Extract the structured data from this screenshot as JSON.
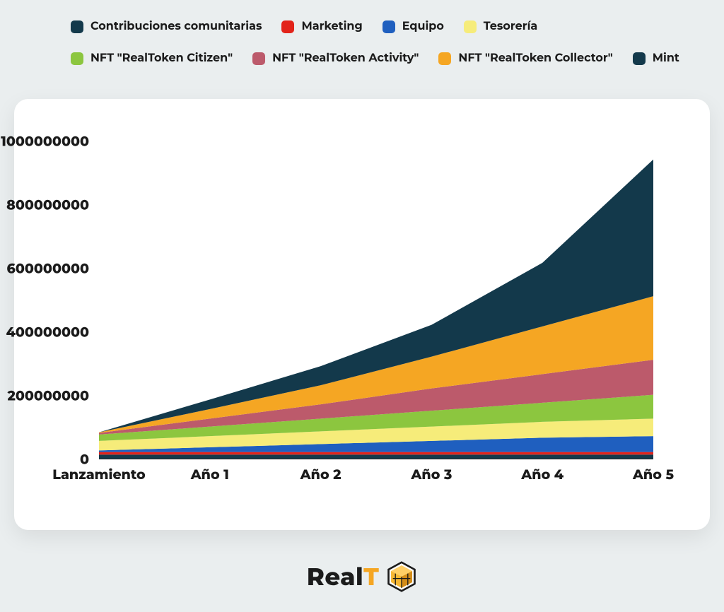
{
  "page_background": "#eaeeef",
  "card_background": "#ffffff",
  "chart": {
    "type": "stacked-area",
    "x_categories": [
      "Lanzamiento",
      "Año 1",
      "Año 2",
      "Año 3",
      "Año 4",
      "Año 5"
    ],
    "x_positions": [
      0.0,
      0.2,
      0.4,
      0.6,
      0.8,
      1.0
    ],
    "ylim": [
      0,
      1000000000
    ],
    "ytick_step": 200000000,
    "ytick_labels": [
      "0",
      "200000000",
      "400000000",
      "600000000",
      "800000000",
      "1000000000"
    ],
    "label_fontsize": 19,
    "label_fontweight": 800,
    "area_opacity": 1.0,
    "series": [
      {
        "name": "Contribuciones comunitarias",
        "color": "#13394b",
        "values": [
          15000000,
          15000000,
          15000000,
          15000000,
          15000000,
          15000000
        ]
      },
      {
        "name": "Marketing",
        "color": "#e2231a",
        "values": [
          8000000,
          8000000,
          8000000,
          8000000,
          8000000,
          8000000
        ]
      },
      {
        "name": "Equipo",
        "color": "#1f5fbf",
        "values": [
          5000000,
          15000000,
          25000000,
          35000000,
          45000000,
          50000000
        ]
      },
      {
        "name": "Tesorería",
        "color": "#f6ec7a",
        "values": [
          30000000,
          35000000,
          40000000,
          45000000,
          50000000,
          55000000
        ]
      },
      {
        "name": "NFT \"RealToken Citizen\"",
        "color": "#8cc63f",
        "values": [
          20000000,
          30000000,
          40000000,
          50000000,
          60000000,
          75000000
        ]
      },
      {
        "name": "NFT \"RealToken Activity\"",
        "color": "#bc5a6b",
        "values": [
          5000000,
          25000000,
          45000000,
          70000000,
          90000000,
          110000000
        ]
      },
      {
        "name": "NFT \"RealToken Collector\"",
        "color": "#f5a623",
        "values": [
          2000000,
          30000000,
          60000000,
          100000000,
          150000000,
          200000000
        ]
      },
      {
        "name": "Mint",
        "color": "#13394b",
        "values": [
          0,
          30000000,
          60000000,
          100000000,
          200000000,
          430000000
        ]
      }
    ]
  },
  "legend": {
    "fontsize": 16,
    "fontweight": 700,
    "swatch_radius": 5,
    "items": [
      {
        "label": "Contribuciones comunitarias",
        "color": "#13394b"
      },
      {
        "label": "Marketing",
        "color": "#e2231a"
      },
      {
        "label": "Equipo",
        "color": "#1f5fbf"
      },
      {
        "label": "Tesorería",
        "color": "#f6ec7a"
      },
      {
        "label": "NFT \"RealToken Citizen\"",
        "color": "#8cc63f"
      },
      {
        "label": "NFT \"RealToken Activity\"",
        "color": "#bc5a6b"
      },
      {
        "label": "NFT \"RealToken Collector\"",
        "color": "#f5a623"
      },
      {
        "label": "Mint",
        "color": "#13394b"
      }
    ]
  },
  "logo": {
    "text_a": "Real",
    "text_b": "T",
    "text_color": "#111111",
    "accent_color": "#f5a623",
    "hex_stroke": "#1b1b1b",
    "hex_fill_top": "#f7b733",
    "hex_fill_side": "#d38d1a"
  }
}
